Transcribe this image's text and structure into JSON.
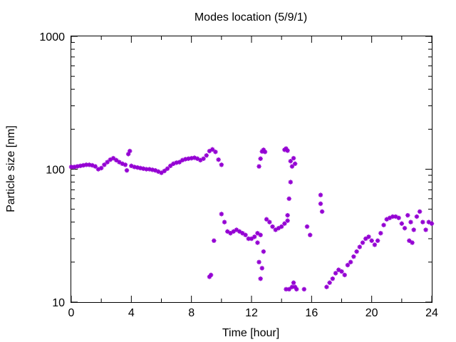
{
  "chart_data": {
    "type": "scatter",
    "title": "Modes location (5/9/1)",
    "xlabel": "Time [hour]",
    "ylabel": "Particle size [nm]",
    "xlim": [
      0,
      24
    ],
    "ylim": [
      10,
      1000
    ],
    "yscale": "log",
    "grid": false,
    "marker_color": "#9400d3",
    "x_ticks": [
      0,
      4,
      8,
      12,
      16,
      20,
      24
    ],
    "x_minor_ticks": [
      2,
      6,
      10,
      14,
      18,
      22
    ],
    "y_ticks": [
      10,
      100,
      1000
    ],
    "series": [
      {
        "points": [
          [
            0.0,
            104
          ],
          [
            0.2,
            104
          ],
          [
            0.4,
            105
          ],
          [
            0.6,
            106
          ],
          [
            0.8,
            107
          ],
          [
            1.0,
            108
          ],
          [
            1.2,
            108
          ],
          [
            1.4,
            107
          ],
          [
            1.6,
            105
          ],
          [
            1.8,
            100
          ],
          [
            2.0,
            102
          ],
          [
            2.2,
            108
          ],
          [
            2.4,
            113
          ],
          [
            2.6,
            118
          ],
          [
            2.8,
            121
          ],
          [
            3.0,
            117
          ],
          [
            3.2,
            113
          ],
          [
            3.4,
            110
          ],
          [
            3.6,
            108
          ],
          [
            3.8,
            130
          ],
          [
            3.9,
            137
          ],
          [
            3.7,
            98
          ],
          [
            4.0,
            106
          ],
          [
            4.2,
            104
          ],
          [
            4.4,
            103
          ],
          [
            4.6,
            102
          ],
          [
            4.8,
            101
          ],
          [
            5.0,
            100
          ],
          [
            5.2,
            100
          ],
          [
            5.4,
            99
          ],
          [
            5.6,
            98
          ],
          [
            5.8,
            96
          ],
          [
            6.0,
            94
          ],
          [
            6.2,
            97
          ],
          [
            6.4,
            101
          ],
          [
            6.6,
            106
          ],
          [
            6.8,
            110
          ],
          [
            7.0,
            112
          ],
          [
            7.2,
            113
          ],
          [
            7.4,
            117
          ],
          [
            7.6,
            119
          ],
          [
            7.8,
            120
          ],
          [
            8.0,
            121
          ],
          [
            8.2,
            122
          ],
          [
            8.4,
            120
          ],
          [
            8.6,
            117
          ],
          [
            8.8,
            120
          ],
          [
            9.0,
            127
          ],
          [
            9.2,
            137
          ],
          [
            9.4,
            141
          ],
          [
            9.6,
            135
          ],
          [
            9.8,
            118
          ],
          [
            10.0,
            108
          ],
          [
            9.2,
            15.5
          ],
          [
            9.3,
            16
          ],
          [
            9.5,
            29
          ],
          [
            10.0,
            46
          ],
          [
            10.2,
            40
          ],
          [
            10.4,
            34
          ],
          [
            10.6,
            33
          ],
          [
            10.8,
            34
          ],
          [
            11.0,
            35
          ],
          [
            11.2,
            34
          ],
          [
            11.4,
            33
          ],
          [
            11.6,
            32
          ],
          [
            11.8,
            30
          ],
          [
            12.0,
            30
          ],
          [
            12.2,
            31
          ],
          [
            12.4,
            33
          ],
          [
            12.6,
            32
          ],
          [
            12.4,
            28
          ],
          [
            12.5,
            20
          ],
          [
            12.6,
            15
          ],
          [
            12.7,
            18
          ],
          [
            12.8,
            24
          ],
          [
            12.5,
            105
          ],
          [
            12.6,
            120
          ],
          [
            12.7,
            136
          ],
          [
            12.8,
            140
          ],
          [
            12.9,
            135
          ],
          [
            13.0,
            42
          ],
          [
            13.2,
            40
          ],
          [
            13.4,
            37
          ],
          [
            13.6,
            35
          ],
          [
            13.8,
            36
          ],
          [
            14.0,
            37
          ],
          [
            14.2,
            39
          ],
          [
            14.4,
            41
          ],
          [
            14.2,
            140
          ],
          [
            14.3,
            143
          ],
          [
            14.4,
            138
          ],
          [
            14.6,
            115
          ],
          [
            14.7,
            105
          ],
          [
            14.8,
            121
          ],
          [
            14.9,
            110
          ],
          [
            14.6,
            80
          ],
          [
            14.5,
            60
          ],
          [
            14.4,
            45
          ],
          [
            14.3,
            12.5
          ],
          [
            14.5,
            12.5
          ],
          [
            14.7,
            13
          ],
          [
            14.8,
            14
          ],
          [
            14.9,
            13
          ],
          [
            15.0,
            12.5
          ],
          [
            15.5,
            12.5
          ],
          [
            15.7,
            37
          ],
          [
            15.9,
            32
          ],
          [
            16.6,
            64
          ],
          [
            16.6,
            55
          ],
          [
            16.7,
            48
          ],
          [
            17.0,
            13
          ],
          [
            17.2,
            14
          ],
          [
            17.4,
            15
          ],
          [
            17.6,
            16.5
          ],
          [
            17.8,
            17.5
          ],
          [
            18.0,
            17
          ],
          [
            18.2,
            16
          ],
          [
            18.4,
            19
          ],
          [
            18.6,
            20
          ],
          [
            18.8,
            22
          ],
          [
            19.0,
            24
          ],
          [
            19.2,
            26
          ],
          [
            19.4,
            28
          ],
          [
            19.6,
            30
          ],
          [
            19.8,
            31
          ],
          [
            20.0,
            29
          ],
          [
            20.2,
            27
          ],
          [
            20.4,
            29
          ],
          [
            20.6,
            33
          ],
          [
            20.8,
            38
          ],
          [
            21.0,
            42
          ],
          [
            21.2,
            43
          ],
          [
            21.4,
            44
          ],
          [
            21.6,
            44
          ],
          [
            21.8,
            43
          ],
          [
            22.0,
            39
          ],
          [
            22.2,
            36
          ],
          [
            22.4,
            45
          ],
          [
            22.6,
            40
          ],
          [
            22.5,
            29
          ],
          [
            22.7,
            28
          ],
          [
            22.8,
            35
          ],
          [
            23.0,
            44
          ],
          [
            23.2,
            48
          ],
          [
            23.4,
            40
          ],
          [
            23.6,
            35
          ],
          [
            23.8,
            40
          ],
          [
            24.0,
            39
          ]
        ]
      }
    ]
  }
}
